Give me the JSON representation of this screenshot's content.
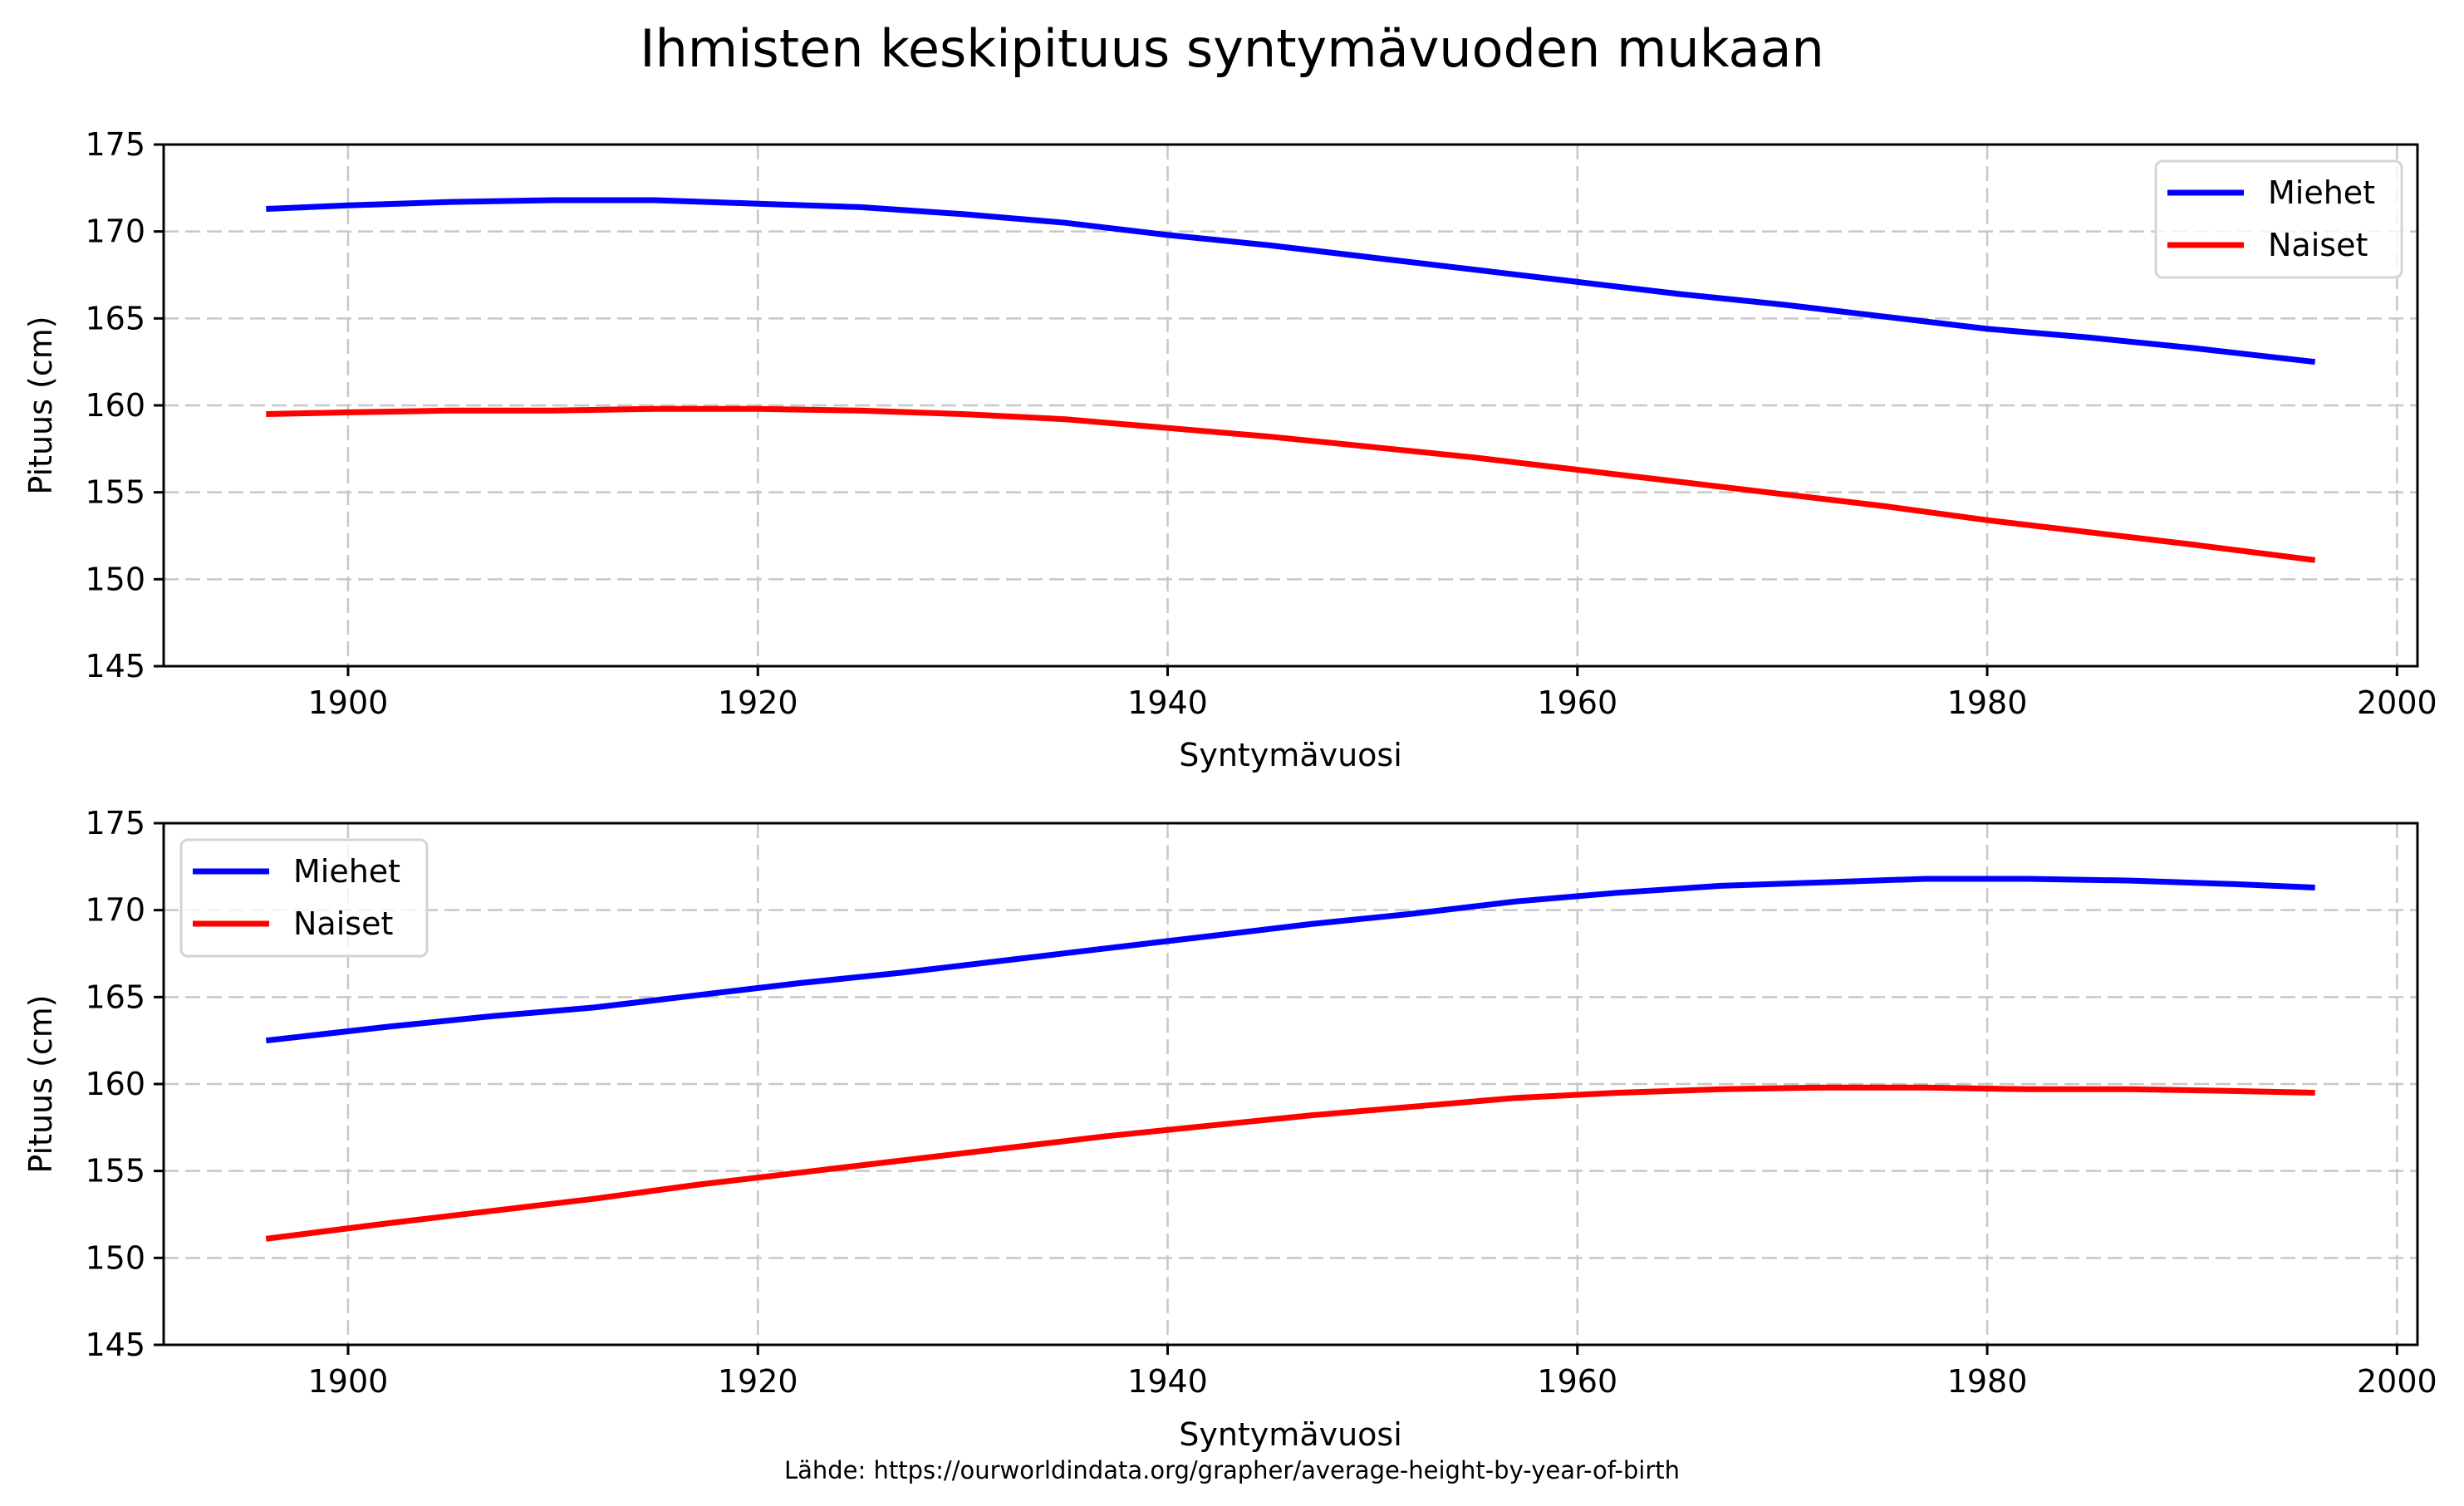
{
  "figure": {
    "title": "Ihmisten keskipituus syntymävuoden mukaan",
    "source_note": "Lähde: https://ourworldindata.org/grapher/average-height-by-year-of-birth"
  },
  "colors": {
    "men": "#0000ff",
    "women": "#ff0000",
    "grid": "#c8c8c8",
    "legend_border": "#d4d4d4"
  },
  "chart_data": [
    {
      "type": "line",
      "title": "",
      "xlabel": "Syntymävuosi",
      "ylabel": "Pituus (cm)",
      "xlim": [
        1891,
        2001
      ],
      "ylim": [
        145,
        175
      ],
      "xticks": [
        1900,
        1920,
        1940,
        1960,
        1980,
        2000
      ],
      "yticks": [
        145,
        150,
        155,
        160,
        165,
        170,
        175
      ],
      "grid": true,
      "legend_position": "upper right",
      "x": [
        1896,
        1900,
        1905,
        1910,
        1915,
        1920,
        1925,
        1930,
        1935,
        1940,
        1945,
        1950,
        1955,
        1960,
        1965,
        1970,
        1975,
        1980,
        1985,
        1990,
        1996
      ],
      "series": [
        {
          "name": "Miehet",
          "color": "#0000ff",
          "values": [
            171.3,
            171.5,
            171.7,
            171.8,
            171.8,
            171.6,
            171.4,
            171.0,
            170.5,
            169.8,
            169.2,
            168.5,
            167.8,
            167.1,
            166.4,
            165.8,
            165.1,
            164.4,
            163.9,
            163.3,
            162.5
          ]
        },
        {
          "name": "Naiset",
          "color": "#ff0000",
          "values": [
            159.5,
            159.6,
            159.7,
            159.7,
            159.8,
            159.8,
            159.7,
            159.5,
            159.2,
            158.7,
            158.2,
            157.6,
            157.0,
            156.3,
            155.6,
            154.9,
            154.2,
            153.4,
            152.7,
            152.0,
            151.1
          ]
        }
      ]
    },
    {
      "type": "line",
      "title": "",
      "xlabel": "Syntymävuosi",
      "ylabel": "Pituus (cm)",
      "xlim": [
        1891,
        2001
      ],
      "ylim": [
        145,
        175
      ],
      "xticks": [
        1900,
        1920,
        1940,
        1960,
        1980,
        2000
      ],
      "yticks": [
        145,
        150,
        155,
        160,
        165,
        170,
        175
      ],
      "grid": true,
      "legend_position": "upper left",
      "x": [
        1896,
        1902,
        1907,
        1912,
        1917,
        1922,
        1927,
        1932,
        1937,
        1942,
        1947,
        1952,
        1957,
        1962,
        1967,
        1972,
        1977,
        1982,
        1987,
        1992,
        1996
      ],
      "series": [
        {
          "name": "Miehet",
          "color": "#0000ff",
          "values": [
            162.5,
            163.3,
            163.9,
            164.4,
            165.1,
            165.8,
            166.4,
            167.1,
            167.8,
            168.5,
            169.2,
            169.8,
            170.5,
            171.0,
            171.4,
            171.6,
            171.8,
            171.8,
            171.7,
            171.5,
            171.3
          ]
        },
        {
          "name": "Naiset",
          "color": "#ff0000",
          "values": [
            151.1,
            152.0,
            152.7,
            153.4,
            154.2,
            154.9,
            155.6,
            156.3,
            157.0,
            157.6,
            158.2,
            158.7,
            159.2,
            159.5,
            159.7,
            159.8,
            159.8,
            159.7,
            159.7,
            159.6,
            159.5
          ]
        }
      ]
    }
  ]
}
